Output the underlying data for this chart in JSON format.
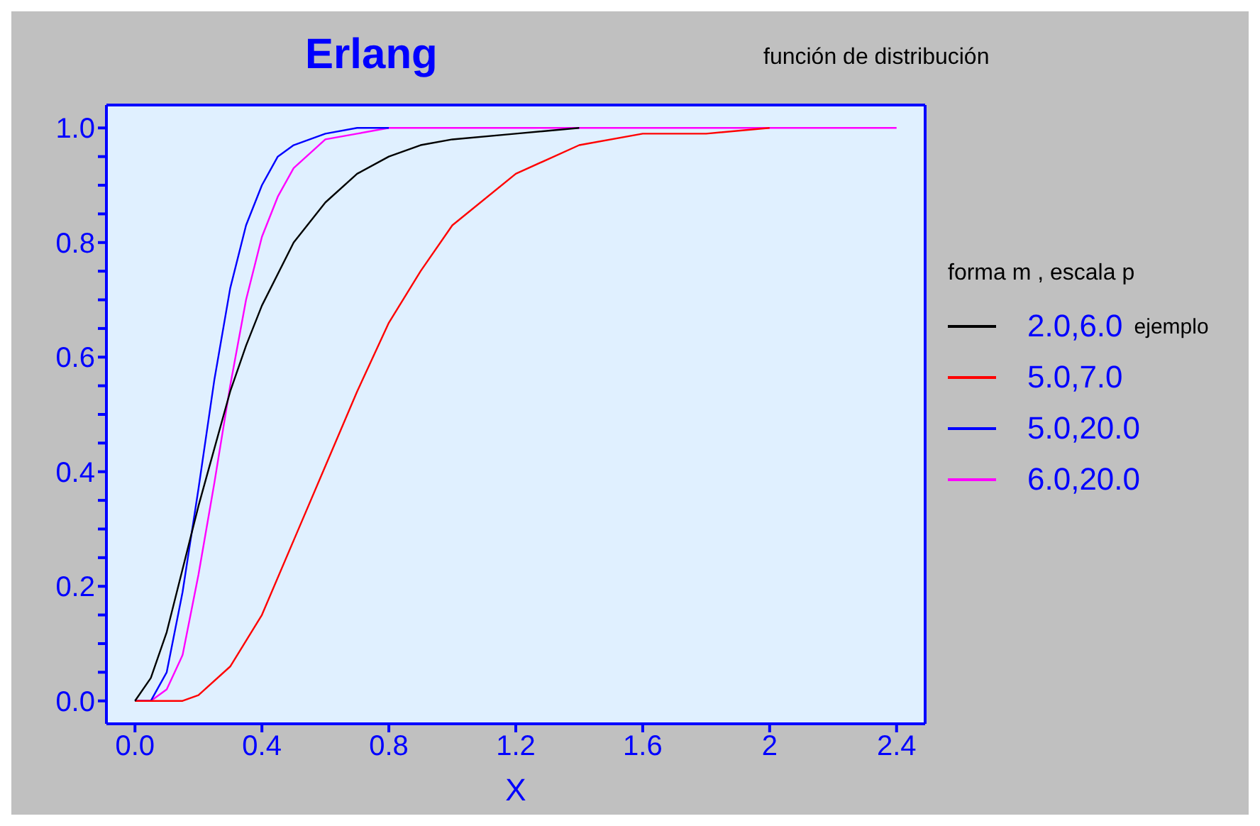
{
  "chart_data": {
    "type": "line",
    "title": "Erlang",
    "subtitle": "función de distribución",
    "xlabel": "X",
    "legend_title": "forma m , escala p",
    "annotations": [
      "ejemplo"
    ],
    "legend": "right",
    "marker": "none",
    "line_style": "solid",
    "xlim": [
      -0.09,
      2.49
    ],
    "ylim": [
      -0.04,
      1.04
    ],
    "xticks": [
      {
        "value": 0,
        "label": "0.0"
      },
      0.4,
      0.8,
      1.2,
      1.6,
      2,
      2.4
    ],
    "yticks": [
      {
        "value": 0,
        "label": "0.0"
      },
      {
        "value": 0.05,
        "label": null
      },
      {
        "value": 0.1,
        "label": null
      },
      {
        "value": 0.15,
        "label": null
      },
      0.2,
      {
        "value": 0.25,
        "label": null
      },
      {
        "value": 0.3,
        "label": null
      },
      {
        "value": 0.35,
        "label": null
      },
      0.4,
      {
        "value": 0.45,
        "label": null
      },
      {
        "value": 0.5,
        "label": null
      },
      {
        "value": 0.55,
        "label": null
      },
      0.6,
      {
        "value": 0.65,
        "label": null
      },
      {
        "value": 0.7,
        "label": null
      },
      {
        "value": 0.75,
        "label": null
      },
      0.8,
      {
        "value": 0.85,
        "label": null
      },
      {
        "value": 0.9,
        "label": null
      },
      {
        "value": 0.95,
        "label": null
      },
      {
        "value": 1,
        "label": "1.0"
      }
    ],
    "series": [
      {
        "name": "2.0,6.0",
        "color": "#000000",
        "x": [
          0,
          0.05,
          0.1,
          0.15,
          0.2,
          0.25,
          0.3,
          0.35,
          0.4,
          0.5,
          0.6,
          0.7,
          0.8,
          0.9,
          1.0,
          1.2,
          1.4
        ],
        "values": [
          0,
          0.04,
          0.12,
          0.23,
          0.34,
          0.44,
          0.54,
          0.62,
          0.69,
          0.8,
          0.87,
          0.92,
          0.95,
          0.97,
          0.98,
          0.99,
          1.0
        ]
      },
      {
        "name": "5.0,7.0",
        "color": "#ff0000",
        "x": [
          0,
          0.05,
          0.1,
          0.15,
          0.2,
          0.3,
          0.4,
          0.5,
          0.6,
          0.7,
          0.8,
          0.9,
          1.0,
          1.2,
          1.4,
          1.6,
          1.8,
          2.0
        ],
        "values": [
          0,
          0,
          0,
          0,
          0.01,
          0.06,
          0.15,
          0.28,
          0.41,
          0.54,
          0.66,
          0.75,
          0.83,
          0.92,
          0.97,
          0.99,
          0.99,
          1.0
        ]
      },
      {
        "name": "5.0,20.0",
        "color": "#0000ff",
        "x": [
          0,
          0.05,
          0.1,
          0.15,
          0.2,
          0.25,
          0.3,
          0.35,
          0.4,
          0.45,
          0.5,
          0.6,
          0.7,
          0.8
        ],
        "values": [
          0,
          0,
          0.05,
          0.19,
          0.37,
          0.56,
          0.72,
          0.83,
          0.9,
          0.95,
          0.97,
          0.99,
          1.0,
          1.0
        ]
      },
      {
        "name": "6.0,20.0",
        "color": "#ff00ff",
        "x": [
          0,
          0.05,
          0.1,
          0.15,
          0.2,
          0.25,
          0.3,
          0.35,
          0.4,
          0.45,
          0.5,
          0.6,
          0.7,
          0.8,
          1.0,
          1.6,
          2.4
        ],
        "values": [
          0,
          0,
          0.02,
          0.08,
          0.22,
          0.38,
          0.55,
          0.7,
          0.81,
          0.88,
          0.93,
          0.98,
          0.99,
          1.0,
          1.0,
          1.0,
          1.0
        ]
      }
    ]
  }
}
